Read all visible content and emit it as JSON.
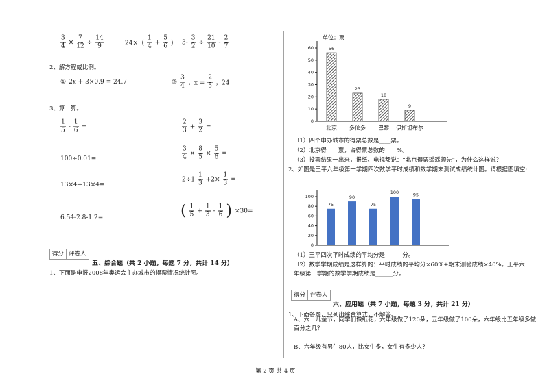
{
  "left": {
    "calc_row": [
      [
        {
          "n": "3",
          "d": "4"
        },
        "×",
        {
          "n": "7",
          "d": "12"
        },
        "÷",
        {
          "n": "14",
          "d": "9"
        }
      ],
      [
        "24×（",
        {
          "n": "1",
          "d": "4"
        },
        "+",
        {
          "n": "5",
          "d": "6"
        },
        "）"
      ],
      [
        "3-",
        {
          "n": "3",
          "d": "2"
        },
        "÷",
        {
          "n": "21",
          "d": "10"
        },
        "-",
        {
          "n": "2",
          "d": "7"
        }
      ]
    ],
    "q2_title": "2、解方程或比例。",
    "q2_items": [
      [
        "①",
        "2x + 3×0.9 = 24.7"
      ],
      [
        "②",
        {
          "n": "3",
          "d": "4"
        },
        "，x =",
        {
          "n": "2",
          "d": "5"
        },
        "，24"
      ]
    ],
    "q3_title": "3、算一算。",
    "q3_items": [
      [
        {
          "n": "1",
          "d": "5"
        },
        "-",
        {
          "n": "1",
          "d": "6"
        },
        "="
      ],
      [
        "100÷0.01="
      ],
      [
        "13×4÷13×4="
      ],
      [
        "6.54-2.8-1.2="
      ],
      [
        {
          "n": "2",
          "d": "3"
        },
        "+",
        {
          "n": "3",
          "d": "2"
        },
        "="
      ],
      [
        {
          "n": "3",
          "d": "4"
        },
        "×",
        {
          "n": "8",
          "d": "5"
        },
        "×",
        {
          "n": "5",
          "d": "6"
        },
        "="
      ],
      [
        "2÷1",
        {
          "n": "1",
          "d": "3"
        },
        "+2×",
        {
          "n": "1",
          "d": "3"
        },
        "="
      ],
      [
        "(",
        {
          "n": "1",
          "d": "5"
        },
        "+",
        {
          "n": "1",
          "d": "3"
        },
        "-",
        {
          "n": "1",
          "d": "6"
        },
        ")",
        "×30="
      ]
    ],
    "score_box": [
      "得分",
      "评卷人"
    ],
    "section_title": "五、综合题（共 2 小题，每题 7 分，共计 14 分）",
    "q1": "1、下面是申报2008年奥运会主办城市的得票情况统计图。"
  },
  "chart_data": [
    {
      "type": "bar",
      "title": "单位：票",
      "categories": [
        "北京",
        "多伦多",
        "巴黎",
        "伊斯坦布尔"
      ],
      "values": [
        56,
        23,
        18,
        9
      ],
      "ylim": [
        0,
        60
      ],
      "yticks": [
        0,
        10,
        20,
        30,
        40,
        50,
        60
      ],
      "color": "#444444",
      "hatch": true
    },
    {
      "type": "bar",
      "categories": [
        null,
        null,
        null,
        null,
        null
      ],
      "values": [
        75,
        90,
        75,
        100,
        95
      ],
      "ylim": [
        0,
        100
      ],
      "yticks": [
        0,
        20,
        40,
        60,
        80,
        100
      ],
      "color": "#4472c4",
      "hatch": false
    }
  ],
  "right": {
    "c1_questions": [
      "（1）四个申办城市的得票总数是____票。",
      "（2）北京得____票，占得票总数的____%。",
      "（3）投票结果一出来，报纸、电视都说：“北京得票遥遥领先”，为什么这样说？"
    ],
    "q2": "2、如图是王平六年级第一学期四次数学平时成绩和数学期末测试成绩统计图。请根据图填空:",
    "c2_questions": [
      "（1）王平四次平时成绩的平均分是______分。",
      "（2）数学学期成绩是这样算的：平时成绩的平均分×60%+期末测验成绩×40%。王平六年级第一学期的数学学期成绩是______分。"
    ],
    "score_box": [
      "得分",
      "评卷人"
    ],
    "section_title": "六、应用题（共 7 小题，每题 3 分，共计 21 分）",
    "q1": "1、下面各题，只列出综合算式，不解答。",
    "qa": "A、六一儿童节，同学们做纸花，六年级做了120朵，五年级做了100朵，六年级比五年级多做百分之几？",
    "qb": "B、六年级有男生80人，比女生多，女生有多少人？"
  },
  "footer": "第 2 页 共 4 页"
}
